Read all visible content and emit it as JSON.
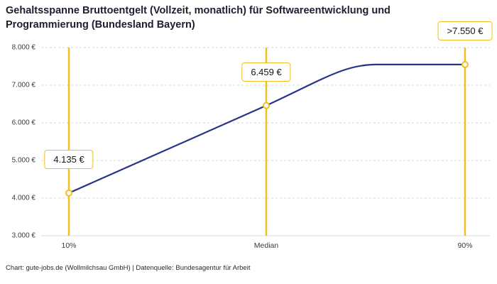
{
  "title": "Gehaltsspanne Bruttoentgelt (Vollzeit, monatlich) für Softwareentwicklung und Programmierung (Bundesland Bayern)",
  "footer": "Chart: gute-jobs.de (Wollmilchsau GmbH) | Datenquelle: Bundesagentur für Arbeit",
  "chart_data": {
    "type": "line",
    "title": "Gehaltsspanne Bruttoentgelt (Vollzeit, monatlich) für Softwareentwicklung und Programmierung (Bundesland Bayern)",
    "categories": [
      "10%",
      "Median",
      "90%"
    ],
    "points": [
      {
        "label": "10%",
        "value": 4135,
        "display": "4.135 €"
      },
      {
        "label": "Median",
        "value": 6459,
        "display": "6.459 €"
      },
      {
        "label": "90%",
        "value": 7550,
        "display": ">7.550 €"
      }
    ],
    "ylim": [
      3000,
      8000
    ],
    "yticks": [
      "8.000 €",
      "7.000 €",
      "6.000 €",
      "5.000 €",
      "4.000 €",
      "3.000 €"
    ],
    "grid": "dashed horizontal",
    "legend": "none",
    "shape_note": "line rises from 10% value through Median, then flattens to a plateau at the 90% value",
    "colors": {
      "line": "#27348b",
      "marker_fill": "#ffffff",
      "accent_yellow": "#f0c021",
      "grid": "#d9d9d9",
      "title_text": "#1b1f2e"
    }
  }
}
